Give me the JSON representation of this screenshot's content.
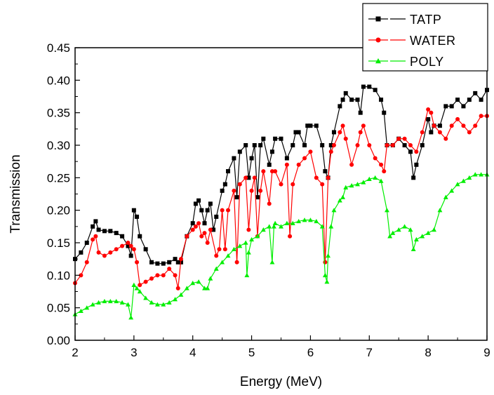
{
  "chart_data": {
    "type": "line",
    "title": "",
    "xlabel": "Energy (MeV)",
    "ylabel": "Transmission",
    "xlim": [
      2,
      9
    ],
    "ylim": [
      0.0,
      0.45
    ],
    "x_ticks": [
      "2",
      "3",
      "4",
      "5",
      "6",
      "7",
      "8",
      "9"
    ],
    "y_ticks": [
      "0.00",
      "0.05",
      "0.10",
      "0.15",
      "0.20",
      "0.25",
      "0.30",
      "0.35",
      "0.40",
      "0.45"
    ],
    "grid": false,
    "legend_position": "top-right",
    "series": [
      {
        "name": "TATP",
        "color": "#000000",
        "marker": "square",
        "x": [
          2.0,
          2.1,
          2.2,
          2.3,
          2.35,
          2.4,
          2.5,
          2.6,
          2.7,
          2.8,
          2.9,
          2.95,
          3.0,
          3.05,
          3.1,
          3.2,
          3.3,
          3.4,
          3.5,
          3.6,
          3.7,
          3.75,
          3.8,
          3.9,
          4.0,
          4.05,
          4.1,
          4.15,
          4.2,
          4.25,
          4.3,
          4.35,
          4.4,
          4.5,
          4.55,
          4.6,
          4.7,
          4.75,
          4.8,
          4.9,
          4.95,
          5.0,
          5.05,
          5.1,
          5.15,
          5.2,
          5.3,
          5.35,
          5.4,
          5.5,
          5.6,
          5.7,
          5.75,
          5.8,
          5.9,
          5.95,
          6.0,
          6.1,
          6.2,
          6.25,
          6.3,
          6.35,
          6.4,
          6.5,
          6.55,
          6.6,
          6.7,
          6.8,
          6.85,
          6.9,
          7.0,
          7.1,
          7.2,
          7.25,
          7.3,
          7.4,
          7.5,
          7.6,
          7.7,
          7.75,
          7.8,
          7.9,
          8.0,
          8.05,
          8.1,
          8.2,
          8.3,
          8.4,
          8.5,
          8.6,
          8.7,
          8.8,
          8.9,
          9.0
        ],
        "y": [
          0.125,
          0.135,
          0.15,
          0.175,
          0.183,
          0.17,
          0.168,
          0.168,
          0.165,
          0.16,
          0.145,
          0.13,
          0.2,
          0.19,
          0.16,
          0.14,
          0.12,
          0.118,
          0.118,
          0.12,
          0.125,
          0.12,
          0.12,
          0.16,
          0.18,
          0.21,
          0.215,
          0.2,
          0.18,
          0.2,
          0.21,
          0.17,
          0.19,
          0.23,
          0.24,
          0.26,
          0.28,
          0.22,
          0.29,
          0.3,
          0.25,
          0.28,
          0.3,
          0.22,
          0.3,
          0.31,
          0.27,
          0.29,
          0.31,
          0.31,
          0.28,
          0.3,
          0.32,
          0.32,
          0.3,
          0.33,
          0.33,
          0.33,
          0.3,
          0.26,
          0.25,
          0.3,
          0.32,
          0.36,
          0.37,
          0.38,
          0.37,
          0.37,
          0.35,
          0.39,
          0.39,
          0.385,
          0.37,
          0.35,
          0.3,
          0.3,
          0.31,
          0.3,
          0.29,
          0.25,
          0.27,
          0.3,
          0.34,
          0.32,
          0.33,
          0.33,
          0.36,
          0.36,
          0.37,
          0.36,
          0.37,
          0.38,
          0.37,
          0.385
        ]
      },
      {
        "name": "WATER",
        "color": "#ff0000",
        "marker": "circle",
        "x": [
          2.0,
          2.1,
          2.2,
          2.3,
          2.35,
          2.4,
          2.5,
          2.6,
          2.7,
          2.8,
          2.9,
          2.95,
          3.0,
          3.05,
          3.1,
          3.2,
          3.3,
          3.4,
          3.5,
          3.6,
          3.7,
          3.75,
          3.8,
          3.9,
          4.0,
          4.05,
          4.1,
          4.15,
          4.2,
          4.25,
          4.3,
          4.4,
          4.45,
          4.5,
          4.55,
          4.6,
          4.7,
          4.75,
          4.8,
          4.9,
          4.95,
          5.0,
          5.05,
          5.1,
          5.15,
          5.2,
          5.3,
          5.35,
          5.4,
          5.5,
          5.6,
          5.65,
          5.7,
          5.8,
          5.9,
          6.0,
          6.1,
          6.2,
          6.25,
          6.3,
          6.35,
          6.4,
          6.5,
          6.55,
          6.6,
          6.7,
          6.8,
          6.85,
          6.9,
          7.0,
          7.1,
          7.2,
          7.25,
          7.3,
          7.4,
          7.5,
          7.6,
          7.7,
          7.8,
          7.9,
          8.0,
          8.05,
          8.1,
          8.2,
          8.3,
          8.4,
          8.5,
          8.6,
          8.7,
          8.8,
          8.9,
          9.0
        ],
        "y": [
          0.088,
          0.1,
          0.12,
          0.155,
          0.16,
          0.135,
          0.13,
          0.135,
          0.14,
          0.145,
          0.15,
          0.145,
          0.14,
          0.12,
          0.085,
          0.09,
          0.095,
          0.1,
          0.1,
          0.11,
          0.1,
          0.08,
          0.125,
          0.16,
          0.17,
          0.175,
          0.18,
          0.16,
          0.165,
          0.15,
          0.17,
          0.13,
          0.14,
          0.2,
          0.14,
          0.2,
          0.23,
          0.12,
          0.24,
          0.25,
          0.17,
          0.23,
          0.25,
          0.16,
          0.23,
          0.26,
          0.21,
          0.26,
          0.26,
          0.24,
          0.27,
          0.16,
          0.24,
          0.27,
          0.28,
          0.29,
          0.25,
          0.24,
          0.12,
          0.25,
          0.29,
          0.3,
          0.32,
          0.33,
          0.31,
          0.27,
          0.3,
          0.32,
          0.33,
          0.3,
          0.28,
          0.27,
          0.26,
          0.3,
          0.3,
          0.31,
          0.31,
          0.3,
          0.29,
          0.32,
          0.355,
          0.35,
          0.33,
          0.32,
          0.31,
          0.33,
          0.34,
          0.33,
          0.32,
          0.33,
          0.345,
          0.345
        ]
      },
      {
        "name": "POLY",
        "color": "#00ee00",
        "marker": "triangle",
        "x": [
          2.0,
          2.1,
          2.2,
          2.3,
          2.4,
          2.5,
          2.6,
          2.7,
          2.8,
          2.9,
          2.95,
          3.0,
          3.05,
          3.1,
          3.2,
          3.3,
          3.4,
          3.5,
          3.6,
          3.7,
          3.8,
          3.9,
          4.0,
          4.1,
          4.2,
          4.25,
          4.3,
          4.4,
          4.5,
          4.6,
          4.7,
          4.8,
          4.9,
          4.92,
          4.95,
          5.0,
          5.1,
          5.2,
          5.3,
          5.35,
          5.38,
          5.4,
          5.5,
          5.6,
          5.7,
          5.8,
          5.9,
          6.0,
          6.1,
          6.2,
          6.25,
          6.28,
          6.3,
          6.35,
          6.4,
          6.5,
          6.55,
          6.6,
          6.7,
          6.8,
          6.9,
          7.0,
          7.1,
          7.2,
          7.3,
          7.35,
          7.4,
          7.5,
          7.6,
          7.7,
          7.75,
          7.8,
          7.9,
          8.0,
          8.1,
          8.2,
          8.3,
          8.4,
          8.5,
          8.6,
          8.7,
          8.8,
          8.9,
          9.0
        ],
        "y": [
          0.04,
          0.045,
          0.05,
          0.055,
          0.058,
          0.06,
          0.06,
          0.06,
          0.058,
          0.055,
          0.035,
          0.085,
          0.08,
          0.075,
          0.065,
          0.058,
          0.055,
          0.055,
          0.058,
          0.063,
          0.07,
          0.08,
          0.088,
          0.09,
          0.08,
          0.08,
          0.095,
          0.11,
          0.12,
          0.13,
          0.14,
          0.145,
          0.15,
          0.1,
          0.135,
          0.155,
          0.16,
          0.17,
          0.175,
          0.12,
          0.175,
          0.18,
          0.175,
          0.18,
          0.18,
          0.183,
          0.185,
          0.185,
          0.183,
          0.175,
          0.1,
          0.09,
          0.13,
          0.175,
          0.2,
          0.215,
          0.22,
          0.235,
          0.238,
          0.24,
          0.243,
          0.248,
          0.25,
          0.245,
          0.2,
          0.16,
          0.165,
          0.17,
          0.175,
          0.17,
          0.14,
          0.155,
          0.16,
          0.165,
          0.17,
          0.2,
          0.22,
          0.23,
          0.24,
          0.245,
          0.25,
          0.255,
          0.255,
          0.255
        ]
      }
    ]
  }
}
